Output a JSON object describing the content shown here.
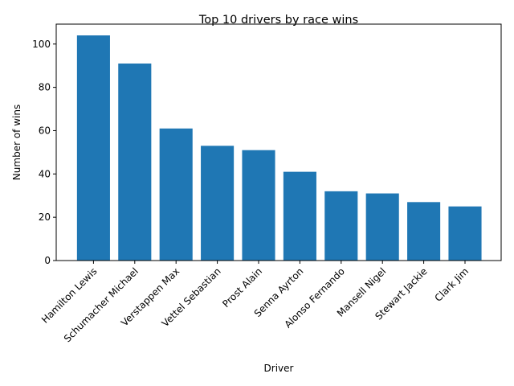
{
  "chart_data": {
    "type": "bar",
    "title": "Top 10 drivers by race wins",
    "xlabel": "Driver",
    "ylabel": "Number of wins",
    "categories": [
      "Hamilton Lewis",
      "Schumacher Michael",
      "Verstappen Max",
      "Vettel Sebastian",
      "Prost Alain",
      "Senna Ayrton",
      "Alonso Fernando",
      "Mansell Nigel",
      "Stewart Jackie",
      "Clark Jim"
    ],
    "values": [
      104,
      91,
      61,
      53,
      51,
      41,
      32,
      31,
      27,
      25
    ],
    "ylim": [
      0,
      109.2
    ],
    "yticks": [
      0,
      20,
      40,
      60,
      80,
      100
    ],
    "bar_color": "#1f77b4",
    "grid": false,
    "legend": "none"
  }
}
